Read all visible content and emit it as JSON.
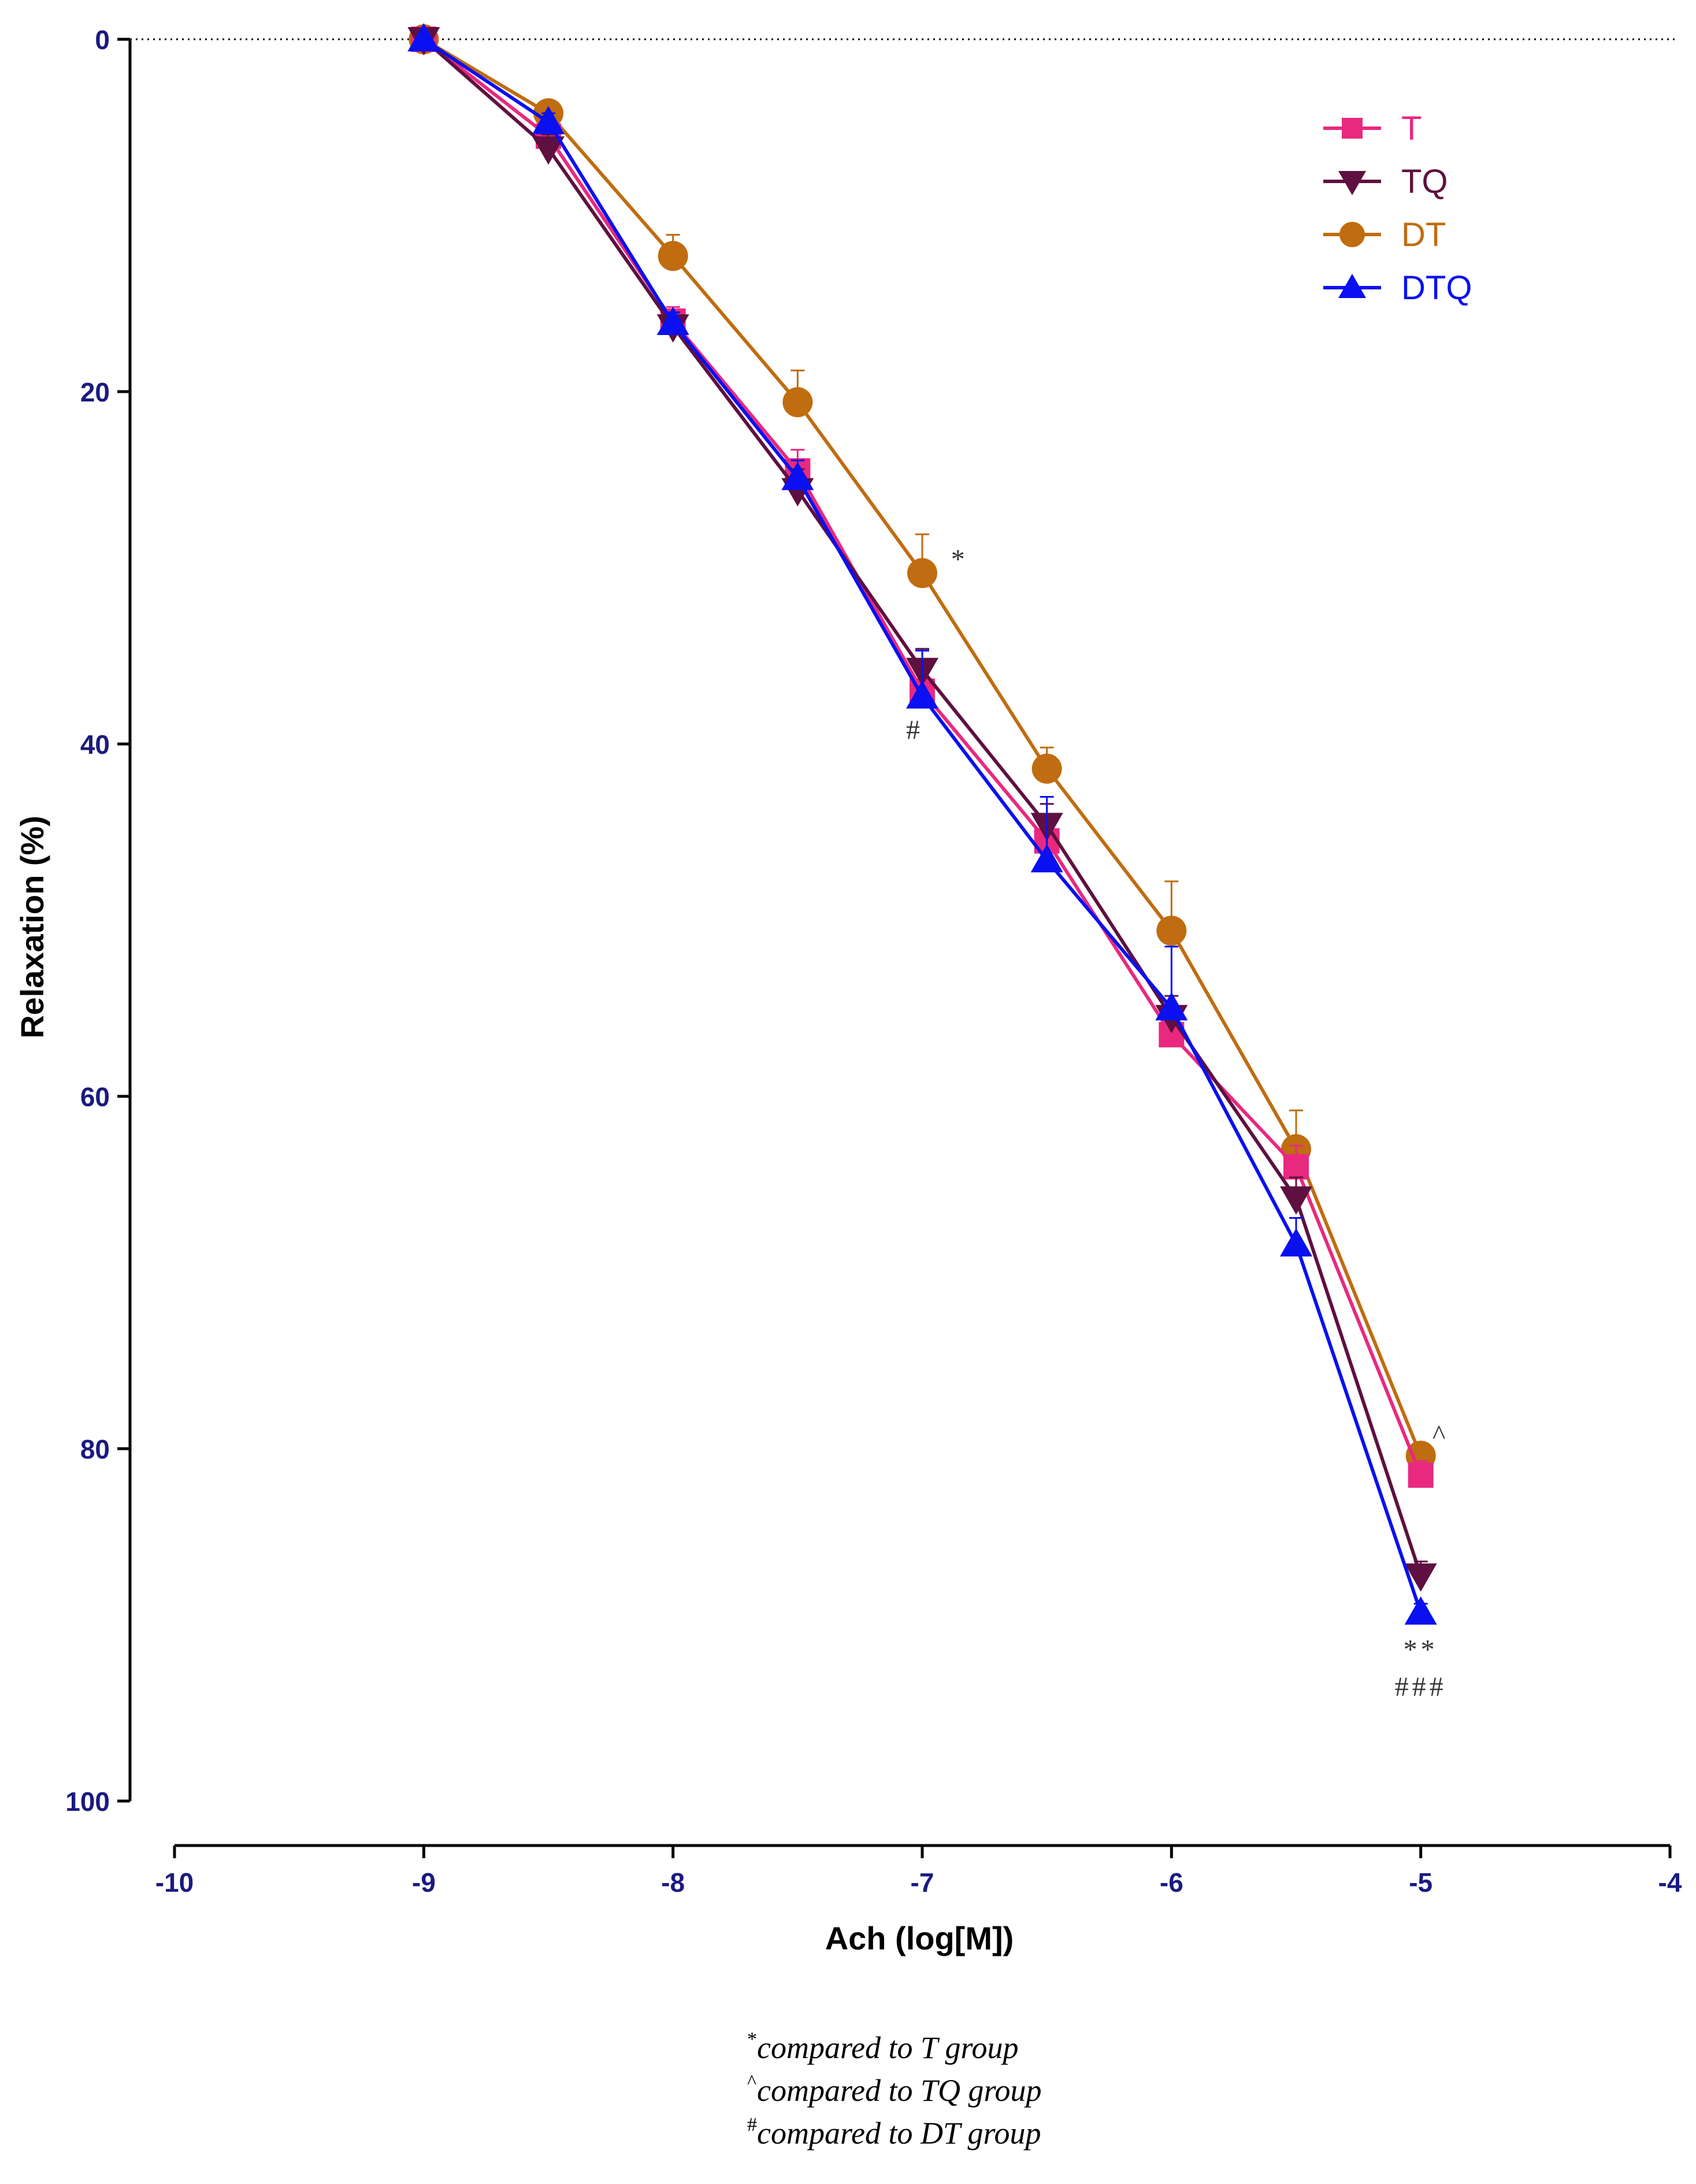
{
  "chart_data": {
    "type": "line",
    "xlabel": "Ach (log[M])",
    "ylabel": "Relaxation (%)",
    "xlim": [
      -10,
      -4
    ],
    "ylim": [
      0,
      100
    ],
    "y_inverted": true,
    "x_ticks": [
      -10,
      -9,
      -8,
      -7,
      -6,
      -5,
      -4
    ],
    "x_tick_labels": [
      "-10",
      "-9",
      "-8",
      "-7",
      "-6",
      "-5",
      "-4"
    ],
    "y_ticks": [
      0,
      20,
      40,
      60,
      80,
      100
    ],
    "y_tick_labels": [
      "0",
      "20",
      "40",
      "60",
      "80",
      "100"
    ],
    "zero_reference_line": "dotted",
    "legend_position": "top-right",
    "x": [
      -9,
      -8.5,
      -8,
      -7.5,
      -7,
      -6.5,
      -6,
      -5.5,
      -5
    ],
    "series": [
      {
        "name": "T",
        "color": "#e8297f",
        "marker": "square",
        "values": [
          0,
          5.5,
          16,
          24.5,
          37,
          45.5,
          56.5,
          64,
          81.5
        ],
        "errors": [
          0,
          0.8,
          0.8,
          1.2,
          1.2,
          1.2,
          1.0,
          1.2,
          0.8
        ]
      },
      {
        "name": "TQ",
        "color": "#5e1040",
        "marker": "triangle-down",
        "values": [
          0,
          6.2,
          16.3,
          25.6,
          35.8,
          44.6,
          55.5,
          65.8,
          87.2
        ],
        "errors": [
          0,
          0.8,
          0.8,
          1.2,
          1.2,
          1.2,
          1.2,
          1.2,
          0.8
        ]
      },
      {
        "name": "DT",
        "color": "#c06c10",
        "marker": "circle",
        "values": [
          0,
          4.2,
          12.3,
          20.6,
          30.3,
          41.4,
          50.6,
          63.0,
          80.4
        ],
        "errors": [
          0,
          0.5,
          1.2,
          1.8,
          2.2,
          1.2,
          2.8,
          2.2,
          0.6
        ]
      },
      {
        "name": "DTQ",
        "color": "#0a10f0",
        "marker": "triangle-up",
        "values": [
          0,
          4.7,
          16.1,
          24.9,
          37.3,
          46.6,
          55.0,
          68.4,
          89.3
        ],
        "errors": [
          0,
          0.5,
          0.6,
          1.0,
          2.6,
          3.6,
          3.5,
          1.5,
          0.5
        ]
      }
    ],
    "annotations": [
      {
        "text": "*",
        "x": -6.85,
        "y": 29.5,
        "series": "DT"
      },
      {
        "text": "#",
        "x": -7.03,
        "y": 39.2,
        "series": "DTQ"
      },
      {
        "text": "^",
        "x": -4.92,
        "y": 79.2,
        "series": "DT"
      },
      {
        "text": "**",
        "x": -5.0,
        "y": 91.4,
        "series": "DTQ"
      },
      {
        "text": "###",
        "x": -5.0,
        "y": 93.5,
        "series": "DTQ"
      }
    ],
    "footnotes": [
      {
        "symbol": "*",
        "text": "compared to T group"
      },
      {
        "symbol": "^",
        "text": "compared to TQ group"
      },
      {
        "symbol": "#",
        "text": "compared to DT group"
      }
    ]
  }
}
